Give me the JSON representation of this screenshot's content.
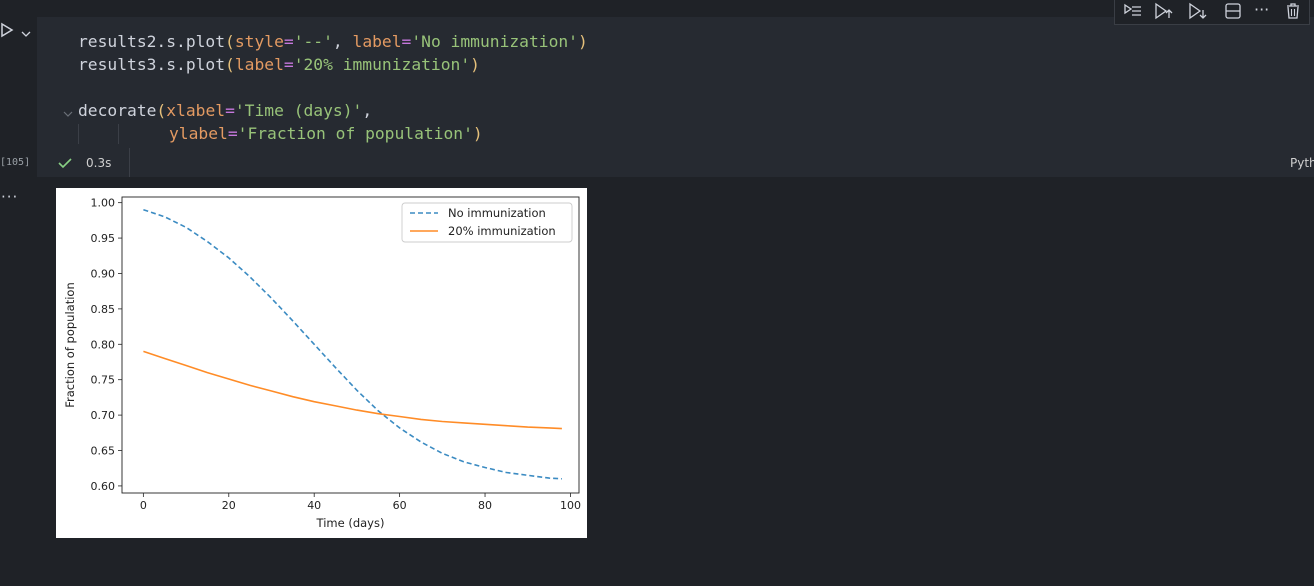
{
  "cell": {
    "execution_count": "[105]",
    "exec_time": "0.3s",
    "language": "Python",
    "more_output_label": "···",
    "code": {
      "line1": {
        "fn": "results2.s.plot",
        "p_open": "(",
        "k1": "style",
        "eq1": "=",
        "v1": "'--'",
        "sep": ", ",
        "k2": "label",
        "eq2": "=",
        "v2": "'No immunization'",
        "p_close": ")"
      },
      "line2": {
        "fn": "results3.s.plot",
        "p_open": "(",
        "k1": "label",
        "eq1": "=",
        "v1": "'20% immunization'",
        "p_close": ")"
      },
      "line3": {
        "fn": "decorate",
        "p_open": "(",
        "k1": "xlabel",
        "eq1": "=",
        "v1": "'Time (days)'",
        "sep": ","
      },
      "line4": {
        "k1": "ylabel",
        "eq1": "=",
        "v1": "'Fraction of population'",
        "p_close": ")"
      }
    }
  },
  "toolbar": {
    "icons": [
      "execute-above-icon",
      "run-above-icon",
      "run-below-icon",
      "split-cell-icon",
      "more-icon",
      "delete-icon"
    ],
    "more_label": "···"
  },
  "colors": {
    "background": "#1f2227",
    "cell_background": "#262a31",
    "series_no_immunization": "#3b8bc2",
    "series_20_immunization": "#ff8c27",
    "success_check": "#89d185"
  },
  "chart_data": {
    "type": "line",
    "xlabel": "Time (days)",
    "ylabel": "Fraction of population",
    "xlim": [
      -5,
      102
    ],
    "ylim": [
      0.59,
      1.008
    ],
    "xticks": [
      0,
      20,
      40,
      60,
      80,
      100
    ],
    "yticks": [
      0.6,
      0.65,
      0.7,
      0.75,
      0.8,
      0.85,
      0.9,
      0.95,
      1.0
    ],
    "xtick_labels": [
      "0",
      "20",
      "40",
      "60",
      "80",
      "100"
    ],
    "ytick_labels": [
      "0.60",
      "0.65",
      "0.70",
      "0.75",
      "0.80",
      "0.85",
      "0.90",
      "0.95",
      "1.00"
    ],
    "legend_position": "top-right",
    "grid": false,
    "series": [
      {
        "name": "No immunization",
        "style": "dashed",
        "color": "#3b8bc2",
        "x": [
          0,
          5,
          10,
          15,
          20,
          25,
          30,
          35,
          40,
          45,
          50,
          55,
          60,
          65,
          70,
          75,
          80,
          85,
          90,
          95,
          98
        ],
        "y": [
          0.99,
          0.98,
          0.965,
          0.945,
          0.922,
          0.895,
          0.865,
          0.833,
          0.8,
          0.767,
          0.735,
          0.706,
          0.682,
          0.662,
          0.646,
          0.634,
          0.626,
          0.619,
          0.615,
          0.611,
          0.61
        ]
      },
      {
        "name": "20% immunization",
        "style": "solid",
        "color": "#ff8c27",
        "x": [
          0,
          5,
          10,
          15,
          20,
          25,
          30,
          35,
          40,
          45,
          50,
          55,
          60,
          65,
          70,
          75,
          80,
          85,
          90,
          95,
          98
        ],
        "y": [
          0.79,
          0.78,
          0.77,
          0.76,
          0.751,
          0.742,
          0.734,
          0.726,
          0.719,
          0.713,
          0.707,
          0.702,
          0.698,
          0.694,
          0.691,
          0.689,
          0.687,
          0.685,
          0.683,
          0.682,
          0.681
        ]
      }
    ]
  }
}
